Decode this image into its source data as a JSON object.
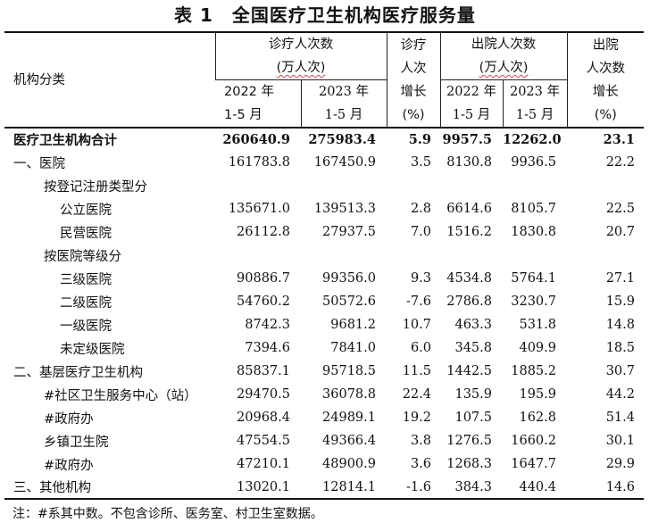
{
  "title": "表 1　全国医疗卫生机构医疗服务量",
  "header": {
    "category": "机构分类",
    "visits_group": "诊疗人次数",
    "visits_unit": "(万人次)",
    "visits_growth": [
      "诊疗",
      "人次",
      "增长",
      "(%)"
    ],
    "discharge_group": "出院人次数",
    "discharge_unit": "(万人次)",
    "discharge_growth": [
      "出院",
      "人次数",
      "增长",
      "(%)"
    ],
    "y2022": "2022 年",
    "y2023": "2023 年",
    "months": "1-5 月"
  },
  "rows": [
    {
      "name": "医疗卫生机构合计",
      "level": 0,
      "bold": true,
      "v22": "260640.9",
      "v23": "275983.4",
      "vg": "5.9",
      "d22": "9957.5",
      "d23": "12262.0",
      "dg": "23.1"
    },
    {
      "name": "一、医院",
      "level": 0,
      "bold": false,
      "v22": "161783.8",
      "v23": "167450.9",
      "vg": "3.5",
      "d22": "8130.8",
      "d23": "9936.5",
      "dg": "22.2"
    },
    {
      "name": "按登记注册类型分",
      "level": 1,
      "bold": false,
      "v22": "",
      "v23": "",
      "vg": "",
      "d22": "",
      "d23": "",
      "dg": ""
    },
    {
      "name": "公立医院",
      "level": 2,
      "bold": false,
      "v22": "135671.0",
      "v23": "139513.3",
      "vg": "2.8",
      "d22": "6614.6",
      "d23": "8105.7",
      "dg": "22.5"
    },
    {
      "name": "民营医院",
      "level": 2,
      "bold": false,
      "v22": "26112.8",
      "v23": "27937.5",
      "vg": "7.0",
      "d22": "1516.2",
      "d23": "1830.8",
      "dg": "20.7"
    },
    {
      "name": "按医院等级分",
      "level": 1,
      "bold": false,
      "v22": "",
      "v23": "",
      "vg": "",
      "d22": "",
      "d23": "",
      "dg": ""
    },
    {
      "name": "三级医院",
      "level": 2,
      "bold": false,
      "v22": "90886.7",
      "v23": "99356.0",
      "vg": "9.3",
      "d22": "4534.8",
      "d23": "5764.1",
      "dg": "27.1"
    },
    {
      "name": "二级医院",
      "level": 2,
      "bold": false,
      "v22": "54760.2",
      "v23": "50572.6",
      "vg": "-7.6",
      "d22": "2786.8",
      "d23": "3230.7",
      "dg": "15.9"
    },
    {
      "name": "一级医院",
      "level": 2,
      "bold": false,
      "v22": "8742.3",
      "v23": "9681.2",
      "vg": "10.7",
      "d22": "463.3",
      "d23": "531.8",
      "dg": "14.8"
    },
    {
      "name": "未定级医院",
      "level": 2,
      "bold": false,
      "v22": "7394.6",
      "v23": "7841.0",
      "vg": "6.0",
      "d22": "345.8",
      "d23": "409.9",
      "dg": "18.5"
    },
    {
      "name": "二、基层医疗卫生机构",
      "level": 0,
      "bold": false,
      "v22": "85837.1",
      "v23": "95718.5",
      "vg": "11.5",
      "d22": "1442.5",
      "d23": "1885.2",
      "dg": "30.7"
    },
    {
      "name": "#社区卫生服务中心（站）",
      "level": 1,
      "bold": false,
      "v22": "29470.5",
      "v23": "36078.8",
      "vg": "22.4",
      "d22": "135.9",
      "d23": "195.9",
      "dg": "44.2"
    },
    {
      "name": "#政府办",
      "level": 1,
      "bold": false,
      "v22": "20968.4",
      "v23": "24989.1",
      "vg": "19.2",
      "d22": "107.5",
      "d23": "162.8",
      "dg": "51.4"
    },
    {
      "name": "乡镇卫生院",
      "level": 1,
      "bold": false,
      "v22": "47554.5",
      "v23": "49366.4",
      "vg": "3.8",
      "d22": "1276.5",
      "d23": "1660.2",
      "dg": "30.1"
    },
    {
      "name": "#政府办",
      "level": 1,
      "bold": false,
      "v22": "47210.1",
      "v23": "48900.9",
      "vg": "3.6",
      "d22": "1268.3",
      "d23": "1647.7",
      "dg": "29.9"
    },
    {
      "name": "三、其他机构",
      "level": 0,
      "bold": false,
      "v22": "13020.1",
      "v23": "12814.1",
      "vg": "-1.6",
      "d22": "384.3",
      "d23": "440.4",
      "dg": "14.6"
    }
  ],
  "note": "注：#系其中数。不包含诊所、医务室、村卫生室数据。"
}
